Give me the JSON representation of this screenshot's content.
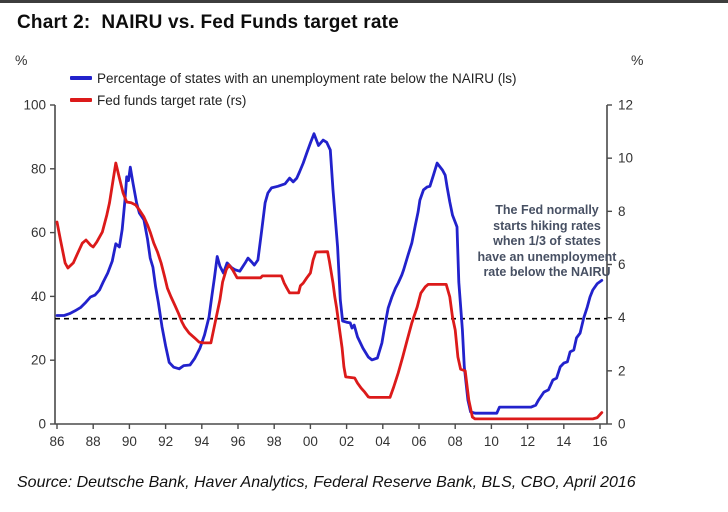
{
  "title": "Chart 2:  NAIRU vs. Fed Funds target rate",
  "units": {
    "left": "%",
    "right": "%"
  },
  "legend": [
    {
      "label": "Percentage of states with an unemployment rate below the NAIRU (ls)",
      "color": "#2222cc"
    },
    {
      "label": "Fed funds target rate (rs)",
      "color": "#dc1a1a"
    }
  ],
  "annotation": {
    "color": "#475063",
    "lines": [
      "The Fed normally",
      "starts hiking rates",
      "when 1/3 of states",
      "have an unemployment",
      "rate below the NAIRU"
    ]
  },
  "source": "Source: Deutsche Bank, Haver Analytics, Federal Reserve Bank, BLS, CBO, April 2016",
  "chart_data": {
    "type": "line",
    "title": "Chart 2:  NAIRU vs. Fed Funds target rate",
    "grid": false,
    "legend_position": "top-left",
    "x_axis": {
      "range": [
        1986,
        2016.4
      ],
      "tick_years": [
        1986,
        1988,
        1990,
        1992,
        1994,
        1996,
        1998,
        2000,
        2002,
        2004,
        2006,
        2008,
        2010,
        2012,
        2014,
        2016
      ],
      "tick_labels": [
        "86",
        "88",
        "90",
        "92",
        "94",
        "96",
        "98",
        "00",
        "02",
        "04",
        "06",
        "08",
        "10",
        "12",
        "14",
        "16"
      ]
    },
    "y_axis_left": {
      "label": "%",
      "ticks": [
        0,
        20,
        40,
        60,
        80,
        100
      ],
      "range": [
        0,
        100
      ]
    },
    "y_axis_right": {
      "label": "%",
      "ticks": [
        0,
        2,
        4,
        6,
        8,
        10,
        12
      ],
      "range": [
        0,
        12
      ]
    },
    "reference_line": {
      "value_left": 33,
      "note": "1/3 of states threshold",
      "style": "dashed",
      "color": "#000000"
    },
    "series": [
      {
        "name": "Percentage of states with an unemployment rate below the NAIRU (ls)",
        "axis": "left",
        "color": "#2222cc",
        "points": [
          [
            1986.0,
            34
          ],
          [
            1986.4,
            34
          ],
          [
            1986.7,
            34.6
          ],
          [
            1987.0,
            35.5
          ],
          [
            1987.3,
            36.5
          ],
          [
            1987.6,
            38.2
          ],
          [
            1987.85,
            39.8
          ],
          [
            1988.1,
            40.4
          ],
          [
            1988.35,
            42
          ],
          [
            1988.55,
            44.5
          ],
          [
            1988.8,
            47.3
          ],
          [
            1989.05,
            51
          ],
          [
            1989.25,
            56.5
          ],
          [
            1989.45,
            55.5
          ],
          [
            1989.6,
            61
          ],
          [
            1989.75,
            70
          ],
          [
            1989.85,
            77.5
          ],
          [
            1989.95,
            76.3
          ],
          [
            1990.05,
            80.5
          ],
          [
            1990.2,
            75.5
          ],
          [
            1990.4,
            69.3
          ],
          [
            1990.55,
            66.1
          ],
          [
            1990.8,
            64
          ],
          [
            1991.0,
            58
          ],
          [
            1991.15,
            52
          ],
          [
            1991.3,
            49.2
          ],
          [
            1991.45,
            43
          ],
          [
            1991.6,
            38
          ],
          [
            1991.8,
            30.5
          ],
          [
            1992.0,
            24.5
          ],
          [
            1992.2,
            19.3
          ],
          [
            1992.45,
            17.8
          ],
          [
            1992.75,
            17.3
          ],
          [
            1993.0,
            18.3
          ],
          [
            1993.35,
            18.5
          ],
          [
            1993.6,
            20.5
          ],
          [
            1993.9,
            23.8
          ],
          [
            1994.15,
            27.9
          ],
          [
            1994.4,
            33.5
          ],
          [
            1994.55,
            40
          ],
          [
            1994.7,
            46
          ],
          [
            1994.85,
            52.5
          ],
          [
            1995.0,
            49.5
          ],
          [
            1995.2,
            47.3
          ],
          [
            1995.4,
            50.5
          ],
          [
            1995.65,
            49
          ],
          [
            1995.85,
            48.3
          ],
          [
            1996.1,
            47.9
          ],
          [
            1996.4,
            50.5
          ],
          [
            1996.55,
            52
          ],
          [
            1996.75,
            50.8
          ],
          [
            1996.9,
            49.8
          ],
          [
            1997.1,
            51.4
          ],
          [
            1997.3,
            60.2
          ],
          [
            1997.5,
            69.3
          ],
          [
            1997.65,
            72.4
          ],
          [
            1997.85,
            74
          ],
          [
            1998.2,
            74.5
          ],
          [
            1998.6,
            75.3
          ],
          [
            1998.85,
            77.1
          ],
          [
            1999.05,
            75.9
          ],
          [
            1999.25,
            77.1
          ],
          [
            1999.4,
            79
          ],
          [
            1999.6,
            81.8
          ],
          [
            1999.8,
            85
          ],
          [
            2000.0,
            88.1
          ],
          [
            2000.2,
            91
          ],
          [
            2000.45,
            87.3
          ],
          [
            2000.7,
            89
          ],
          [
            2000.9,
            88.3
          ],
          [
            2001.1,
            85.9
          ],
          [
            2001.25,
            73.4
          ],
          [
            2001.5,
            55.5
          ],
          [
            2001.65,
            38.9
          ],
          [
            2001.78,
            32.3
          ],
          [
            2002.0,
            31.9
          ],
          [
            2002.2,
            31.7
          ],
          [
            2002.3,
            30.1
          ],
          [
            2002.42,
            31
          ],
          [
            2002.6,
            27.3
          ],
          [
            2002.9,
            23.8
          ],
          [
            2003.2,
            21
          ],
          [
            2003.4,
            20.1
          ],
          [
            2003.7,
            20.7
          ],
          [
            2003.95,
            25.4
          ],
          [
            2004.1,
            30.4
          ],
          [
            2004.3,
            36.4
          ],
          [
            2004.5,
            39.8
          ],
          [
            2004.7,
            42.6
          ],
          [
            2004.85,
            44.2
          ],
          [
            2005.05,
            46.7
          ],
          [
            2005.15,
            48.3
          ],
          [
            2005.4,
            53
          ],
          [
            2005.6,
            56.7
          ],
          [
            2005.8,
            62.4
          ],
          [
            2005.95,
            66.5
          ],
          [
            2006.05,
            70.2
          ],
          [
            2006.25,
            73.4
          ],
          [
            2006.45,
            74.3
          ],
          [
            2006.6,
            74.5
          ],
          [
            2006.8,
            78.1
          ],
          [
            2007.0,
            81.8
          ],
          [
            2007.3,
            79.6
          ],
          [
            2007.45,
            78
          ],
          [
            2007.55,
            74.3
          ],
          [
            2007.7,
            69.6
          ],
          [
            2007.85,
            65.5
          ],
          [
            2008.0,
            63.3
          ],
          [
            2008.1,
            61.8
          ],
          [
            2008.2,
            44.5
          ],
          [
            2008.4,
            29.5
          ],
          [
            2008.5,
            17.9
          ],
          [
            2008.7,
            7.5
          ],
          [
            2008.85,
            3.8
          ],
          [
            2009.1,
            3.4
          ],
          [
            2010.3,
            3.4
          ],
          [
            2010.45,
            5.3
          ],
          [
            2012.2,
            5.3
          ],
          [
            2012.45,
            5.9
          ],
          [
            2012.6,
            7.5
          ],
          [
            2012.9,
            10
          ],
          [
            2013.15,
            10.7
          ],
          [
            2013.4,
            13.8
          ],
          [
            2013.6,
            14.4
          ],
          [
            2013.8,
            17.9
          ],
          [
            2014.0,
            19.1
          ],
          [
            2014.2,
            19.5
          ],
          [
            2014.35,
            22.6
          ],
          [
            2014.55,
            23.2
          ],
          [
            2014.7,
            27
          ],
          [
            2014.9,
            28.5
          ],
          [
            2015.1,
            33.2
          ],
          [
            2015.3,
            36.7
          ],
          [
            2015.45,
            39.8
          ],
          [
            2015.6,
            42
          ],
          [
            2015.85,
            44
          ],
          [
            2016.1,
            45
          ]
        ]
      },
      {
        "name": "Fed funds target rate (rs)",
        "axis": "right",
        "color": "#dc1a1a",
        "points": [
          [
            1986.0,
            7.6
          ],
          [
            1986.2,
            6.9
          ],
          [
            1986.45,
            6.06
          ],
          [
            1986.6,
            5.87
          ],
          [
            1986.9,
            6.06
          ],
          [
            1987.1,
            6.36
          ],
          [
            1987.4,
            6.8
          ],
          [
            1987.6,
            6.92
          ],
          [
            1987.85,
            6.73
          ],
          [
            1988.0,
            6.66
          ],
          [
            1988.2,
            6.85
          ],
          [
            1988.5,
            7.22
          ],
          [
            1988.75,
            7.86
          ],
          [
            1988.9,
            8.32
          ],
          [
            1989.1,
            9.18
          ],
          [
            1989.25,
            9.82
          ],
          [
            1989.45,
            9.25
          ],
          [
            1989.65,
            8.69
          ],
          [
            1989.85,
            8.35
          ],
          [
            1990.1,
            8.32
          ],
          [
            1990.35,
            8.24
          ],
          [
            1990.55,
            8.05
          ],
          [
            1990.8,
            7.79
          ],
          [
            1991.0,
            7.49
          ],
          [
            1991.15,
            7.22
          ],
          [
            1991.35,
            6.8
          ],
          [
            1991.55,
            6.47
          ],
          [
            1991.75,
            6.06
          ],
          [
            1991.95,
            5.53
          ],
          [
            1992.1,
            5.11
          ],
          [
            1992.3,
            4.78
          ],
          [
            1992.5,
            4.48
          ],
          [
            1992.7,
            4.18
          ],
          [
            1992.9,
            3.84
          ],
          [
            1993.05,
            3.65
          ],
          [
            1993.3,
            3.42
          ],
          [
            1993.6,
            3.24
          ],
          [
            1993.85,
            3.08
          ],
          [
            1994.1,
            3.05
          ],
          [
            1994.5,
            3.05
          ],
          [
            1994.65,
            3.54
          ],
          [
            1994.8,
            4.02
          ],
          [
            1995.0,
            4.67
          ],
          [
            1995.15,
            5.34
          ],
          [
            1995.35,
            5.8
          ],
          [
            1995.5,
            5.98
          ],
          [
            1995.7,
            5.8
          ],
          [
            1995.8,
            5.68
          ],
          [
            1995.95,
            5.5
          ],
          [
            1997.25,
            5.5
          ],
          [
            1997.35,
            5.57
          ],
          [
            1998.4,
            5.57
          ],
          [
            1998.55,
            5.3
          ],
          [
            1998.7,
            5.11
          ],
          [
            1998.85,
            4.93
          ],
          [
            1999.35,
            4.93
          ],
          [
            1999.45,
            5.2
          ],
          [
            1999.6,
            5.3
          ],
          [
            1999.8,
            5.5
          ],
          [
            2000.0,
            5.68
          ],
          [
            2000.15,
            6.17
          ],
          [
            2000.3,
            6.47
          ],
          [
            2000.95,
            6.48
          ],
          [
            2001.05,
            6.12
          ],
          [
            2001.15,
            5.71
          ],
          [
            2001.25,
            5.3
          ],
          [
            2001.35,
            4.78
          ],
          [
            2001.45,
            4.37
          ],
          [
            2001.55,
            3.84
          ],
          [
            2001.65,
            3.35
          ],
          [
            2001.75,
            2.86
          ],
          [
            2001.85,
            2.15
          ],
          [
            2001.95,
            1.77
          ],
          [
            2002.45,
            1.73
          ],
          [
            2002.6,
            1.54
          ],
          [
            2002.8,
            1.35
          ],
          [
            2003.0,
            1.2
          ],
          [
            2003.2,
            1.02
          ],
          [
            2003.3,
            1.0
          ],
          [
            2004.4,
            1.0
          ],
          [
            2004.6,
            1.39
          ],
          [
            2004.85,
            1.92
          ],
          [
            2005.1,
            2.52
          ],
          [
            2005.35,
            3.16
          ],
          [
            2005.6,
            3.8
          ],
          [
            2005.9,
            4.4
          ],
          [
            2006.1,
            4.92
          ],
          [
            2006.35,
            5.16
          ],
          [
            2006.5,
            5.25
          ],
          [
            2007.5,
            5.25
          ],
          [
            2007.7,
            4.78
          ],
          [
            2007.85,
            4.02
          ],
          [
            2008.0,
            3.54
          ],
          [
            2008.15,
            2.52
          ],
          [
            2008.3,
            2.06
          ],
          [
            2008.55,
            2.0
          ],
          [
            2008.75,
            0.9
          ],
          [
            2008.95,
            0.26
          ],
          [
            2009.1,
            0.19
          ],
          [
            2015.6,
            0.19
          ],
          [
            2015.85,
            0.24
          ],
          [
            2016.1,
            0.43
          ]
        ]
      }
    ]
  }
}
